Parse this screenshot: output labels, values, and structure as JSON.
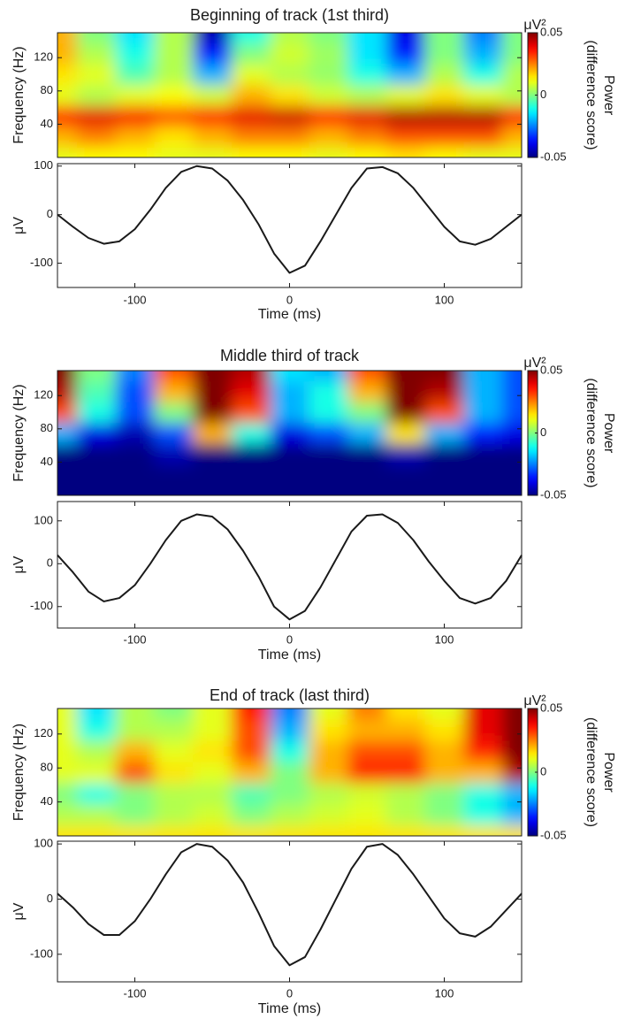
{
  "chart_data": [
    {
      "type": "heatmap",
      "title": "Beginning of track (1st third)",
      "ylabel": "Frequency (Hz)",
      "x": [
        -150,
        -125,
        -100,
        -75,
        -50,
        -25,
        0,
        25,
        50,
        75,
        100,
        125,
        150
      ],
      "y": [
        0,
        25,
        50,
        75,
        100,
        125,
        150
      ],
      "z": [
        [
          0.01,
          0.012,
          0.012,
          0.01,
          0.01,
          0.012,
          0.012,
          0.01,
          0.012,
          0.015,
          0.012,
          0.01,
          0.01
        ],
        [
          0.02,
          0.025,
          0.02,
          0.015,
          0.02,
          0.025,
          0.025,
          0.02,
          0.025,
          0.03,
          0.03,
          0.03,
          0.02
        ],
        [
          0.035,
          0.04,
          0.038,
          0.03,
          0.035,
          0.04,
          0.042,
          0.035,
          0.04,
          0.045,
          0.045,
          0.045,
          0.035
        ],
        [
          0.01,
          0.005,
          0.01,
          0.012,
          0.008,
          0.02,
          0.015,
          0.008,
          0.005,
          0.01,
          0.015,
          0.01,
          0.005
        ],
        [
          0.015,
          0.01,
          -0.005,
          0.005,
          -0.02,
          0.01,
          0.005,
          0.002,
          -0.01,
          -0.02,
          0.005,
          -0.01,
          0.005
        ],
        [
          0.02,
          0.005,
          -0.01,
          0.005,
          -0.035,
          0,
          0.008,
          0.003,
          -0.015,
          -0.035,
          0,
          -0.02,
          0
        ],
        [
          0.02,
          0,
          -0.015,
          0.005,
          -0.045,
          -0.01,
          0.005,
          0,
          -0.015,
          -0.04,
          0,
          -0.025,
          0
        ]
      ],
      "xlim": [
        -150,
        150
      ],
      "ylim": [
        0,
        150
      ],
      "yticks": [
        40,
        80,
        120
      ],
      "zlim": [
        -0.05,
        0.05
      ],
      "zticks": [
        -0.05,
        0,
        0.05
      ],
      "zunit": "μV²",
      "zlabel": [
        "Power",
        "(difference score)"
      ]
    },
    {
      "type": "line",
      "ylabel": "μV",
      "xlabel": "Time (ms)",
      "color": "#1a1a1a",
      "x": [
        -150,
        -140,
        -130,
        -120,
        -110,
        -100,
        -90,
        -80,
        -70,
        -60,
        -50,
        -40,
        -30,
        -20,
        -10,
        0,
        10,
        20,
        30,
        40,
        50,
        60,
        70,
        80,
        90,
        100,
        110,
        120,
        130,
        140,
        150
      ],
      "values": [
        0,
        -25,
        -48,
        -60,
        -55,
        -30,
        10,
        55,
        88,
        100,
        95,
        70,
        30,
        -20,
        -80,
        -120,
        -105,
        -55,
        0,
        55,
        95,
        98,
        85,
        55,
        15,
        -25,
        -55,
        -62,
        -50,
        -25,
        0
      ],
      "xlim": [
        -150,
        150
      ],
      "ylim": [
        -150,
        105
      ],
      "xticks": [
        -100,
        0,
        100
      ],
      "yticks": [
        -100,
        0,
        100
      ]
    },
    {
      "type": "heatmap",
      "title": "Middle third of track",
      "ylabel": "Frequency (Hz)",
      "x": [
        -150,
        -125,
        -100,
        -75,
        -50,
        -25,
        0,
        25,
        50,
        75,
        100,
        125,
        150
      ],
      "y": [
        0,
        25,
        50,
        75,
        100,
        125,
        150
      ],
      "z": [
        [
          -0.05,
          -0.05,
          -0.05,
          -0.05,
          -0.05,
          -0.05,
          -0.05,
          -0.05,
          -0.05,
          -0.05,
          -0.05,
          -0.05,
          -0.05
        ],
        [
          -0.05,
          -0.05,
          -0.05,
          -0.05,
          -0.05,
          -0.05,
          -0.05,
          -0.05,
          -0.05,
          -0.05,
          -0.05,
          -0.05,
          -0.05
        ],
        [
          -0.05,
          -0.05,
          -0.05,
          -0.045,
          -0.05,
          -0.05,
          -0.05,
          -0.05,
          -0.05,
          -0.045,
          -0.05,
          -0.05,
          -0.05
        ],
        [
          -0.02,
          -0.04,
          -0.045,
          -0.03,
          0.02,
          -0.01,
          -0.04,
          -0.03,
          -0.02,
          0.015,
          -0.02,
          -0.035,
          -0.04
        ],
        [
          0.03,
          -0.01,
          -0.03,
          0,
          0.05,
          0.03,
          -0.02,
          -0.01,
          0,
          0.05,
          0.03,
          -0.02,
          -0.03
        ],
        [
          0.045,
          -0.005,
          -0.03,
          0.02,
          0.05,
          0.04,
          -0.02,
          -0.01,
          0.02,
          0.05,
          0.045,
          -0.02,
          -0.03
        ],
        [
          0.05,
          0,
          -0.025,
          0.03,
          0.05,
          0.045,
          -0.015,
          -0.02,
          0.03,
          0.05,
          0.05,
          -0.02,
          -0.03
        ]
      ],
      "xlim": [
        -150,
        150
      ],
      "ylim": [
        0,
        150
      ],
      "yticks": [
        40,
        80,
        120
      ],
      "zlim": [
        -0.05,
        0.05
      ],
      "zticks": [
        -0.05,
        0,
        0.05
      ],
      "zunit": "μV²",
      "zlabel": [
        "Power",
        "(difference score)"
      ]
    },
    {
      "type": "line",
      "ylabel": "μV",
      "xlabel": "Time (ms)",
      "color": "#1a1a1a",
      "x": [
        -150,
        -140,
        -130,
        -120,
        -110,
        -100,
        -90,
        -80,
        -70,
        -60,
        -50,
        -40,
        -30,
        -20,
        -10,
        0,
        10,
        20,
        30,
        40,
        50,
        60,
        70,
        80,
        90,
        100,
        110,
        120,
        130,
        140,
        150
      ],
      "values": [
        20,
        -20,
        -65,
        -88,
        -80,
        -50,
        0,
        55,
        100,
        115,
        110,
        80,
        30,
        -30,
        -100,
        -130,
        -110,
        -55,
        10,
        75,
        112,
        115,
        95,
        55,
        5,
        -40,
        -80,
        -93,
        -80,
        -40,
        20
      ],
      "xlim": [
        -150,
        150
      ],
      "ylim": [
        -150,
        145
      ],
      "xticks": [
        -100,
        0,
        100
      ],
      "yticks": [
        -100,
        0,
        100
      ]
    },
    {
      "type": "heatmap",
      "title": "End of track (last third)",
      "ylabel": "Frequency (Hz)",
      "x": [
        -150,
        -125,
        -100,
        -75,
        -50,
        -25,
        0,
        25,
        50,
        75,
        100,
        125,
        150
      ],
      "y": [
        0,
        25,
        50,
        75,
        100,
        125,
        150
      ],
      "z": [
        [
          0.015,
          0.015,
          0.015,
          0.015,
          0.015,
          0.015,
          0.015,
          0.015,
          0.015,
          0.015,
          0.015,
          0.015,
          0.015
        ],
        [
          0.005,
          0.005,
          0,
          0.005,
          0.008,
          0,
          0.005,
          0.008,
          0.01,
          0.005,
          0,
          -0.01,
          -0.02
        ],
        [
          0,
          -0.01,
          0,
          0.005,
          0.005,
          -0.005,
          0,
          0.005,
          0.008,
          0.005,
          0,
          -0.01,
          -0.02
        ],
        [
          0.01,
          0.01,
          0.03,
          0.015,
          0.01,
          0.02,
          0,
          0.02,
          0.035,
          0.035,
          0.02,
          0.02,
          0.045
        ],
        [
          0.01,
          0.005,
          0.02,
          0.01,
          0.015,
          0.03,
          -0.01,
          0.02,
          0.03,
          0.03,
          0.02,
          0.035,
          0.05
        ],
        [
          0.01,
          -0.01,
          0.005,
          0.005,
          0.01,
          0.03,
          -0.02,
          0.015,
          0.02,
          0.02,
          0.015,
          0.04,
          0.05
        ],
        [
          0.01,
          -0.015,
          0.005,
          0,
          0.01,
          0.035,
          -0.025,
          0.01,
          0.025,
          0.015,
          0.01,
          0.04,
          0.05
        ]
      ],
      "xlim": [
        -150,
        150
      ],
      "ylim": [
        0,
        150
      ],
      "yticks": [
        40,
        80,
        120
      ],
      "zlim": [
        -0.05,
        0.05
      ],
      "zticks": [
        -0.05,
        0,
        0.05
      ],
      "zunit": "μV²",
      "zlabel": [
        "Power",
        "(difference score)"
      ]
    },
    {
      "type": "line",
      "ylabel": "μV",
      "xlabel": "Time (ms)",
      "color": "#1a1a1a",
      "x": [
        -150,
        -140,
        -130,
        -120,
        -110,
        -100,
        -90,
        -80,
        -70,
        -60,
        -50,
        -40,
        -30,
        -20,
        -10,
        0,
        10,
        20,
        30,
        40,
        50,
        60,
        70,
        80,
        90,
        100,
        110,
        120,
        130,
        140,
        150
      ],
      "values": [
        10,
        -15,
        -45,
        -65,
        -65,
        -40,
        0,
        45,
        85,
        100,
        95,
        70,
        30,
        -25,
        -85,
        -120,
        -105,
        -55,
        0,
        55,
        95,
        100,
        80,
        45,
        5,
        -35,
        -62,
        -68,
        -50,
        -20,
        10
      ],
      "xlim": [
        -150,
        150
      ],
      "ylim": [
        -150,
        105
      ],
      "xticks": [
        -100,
        0,
        100
      ],
      "yticks": [
        -100,
        0,
        100
      ]
    }
  ]
}
